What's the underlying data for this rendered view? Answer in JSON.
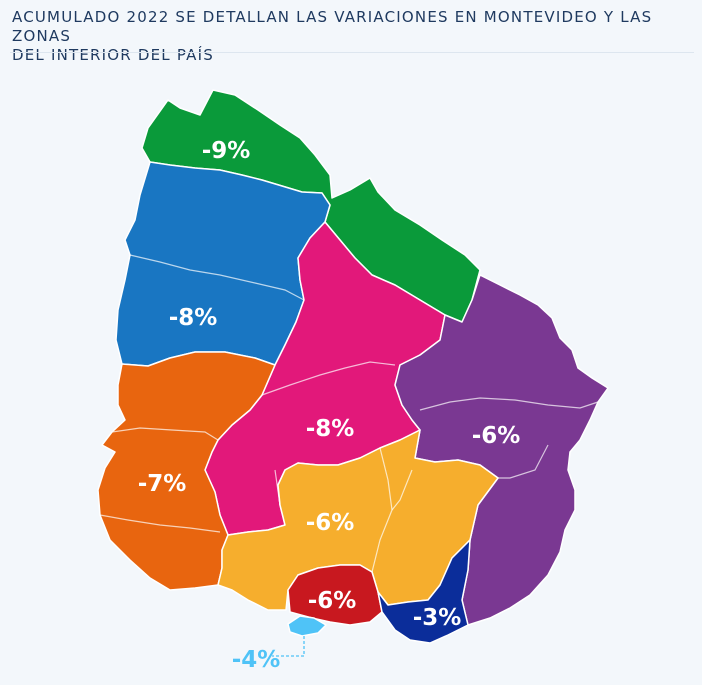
{
  "header": {
    "title_line1": "ACUMULADO 2022 SE DETALLAN LAS VARIACIONES EN MONTEVIDEO Y LAS ZONAS",
    "title_line2": "DEL INTERIOR DEL PAÍS"
  },
  "regions": {
    "north": {
      "label": "-9%",
      "color": "#0a9a3a"
    },
    "west_north": {
      "label": "-8%",
      "color": "#1976c2"
    },
    "center": {
      "label": "-8%",
      "color": "#e2187a"
    },
    "east": {
      "label": "-6%",
      "color": "#7a3892"
    },
    "southwest": {
      "label": "-7%",
      "color": "#e8650f"
    },
    "south_center": {
      "label": "-6%",
      "color": "#f6ae2d"
    },
    "canelones": {
      "label": "-6%",
      "color": "#c8181f"
    },
    "maldonado": {
      "label": "-3%",
      "color": "#0b2d9a"
    },
    "montevideo": {
      "label": "-4%",
      "color": "#4fc3f7"
    }
  }
}
